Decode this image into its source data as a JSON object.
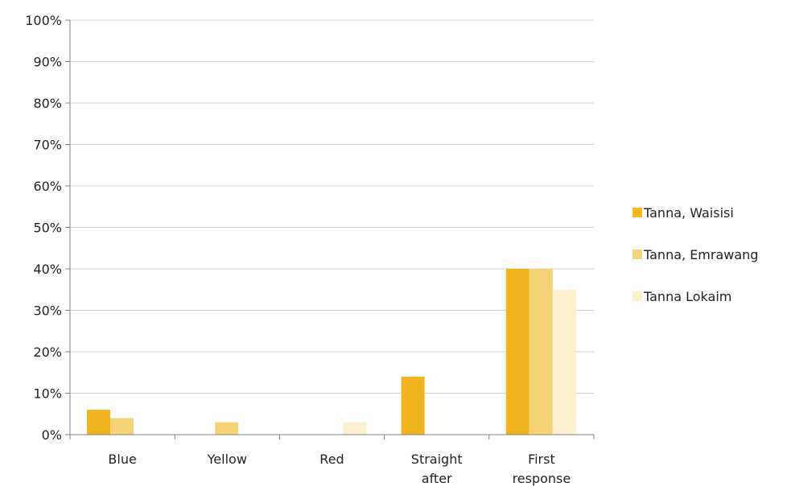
{
  "chart_data": {
    "type": "bar",
    "title": "",
    "xlabel": "",
    "ylabel": "",
    "ylim": [
      0,
      100
    ],
    "yticks": [
      "0%",
      "10%",
      "20%",
      "30%",
      "40%",
      "50%",
      "60%",
      "70%",
      "80%",
      "90%",
      "100%"
    ],
    "categories": [
      [
        "Blue"
      ],
      [
        "Yellow"
      ],
      [
        "Red"
      ],
      [
        "Straight",
        "after"
      ],
      [
        "First",
        "response"
      ]
    ],
    "series": [
      {
        "name": "Tanna, Waisisi",
        "color": "#F0B51E",
        "values": [
          6,
          0,
          0,
          14,
          40
        ]
      },
      {
        "name": "Tanna, Emrawang",
        "color": "#F5D275",
        "values": [
          4,
          3,
          0,
          0,
          40
        ]
      },
      {
        "name": "Tanna Lokaim",
        "color": "#FDF0CE",
        "values": [
          0,
          0,
          3,
          0,
          35
        ]
      }
    ],
    "grid": true,
    "legend_position": "right"
  }
}
